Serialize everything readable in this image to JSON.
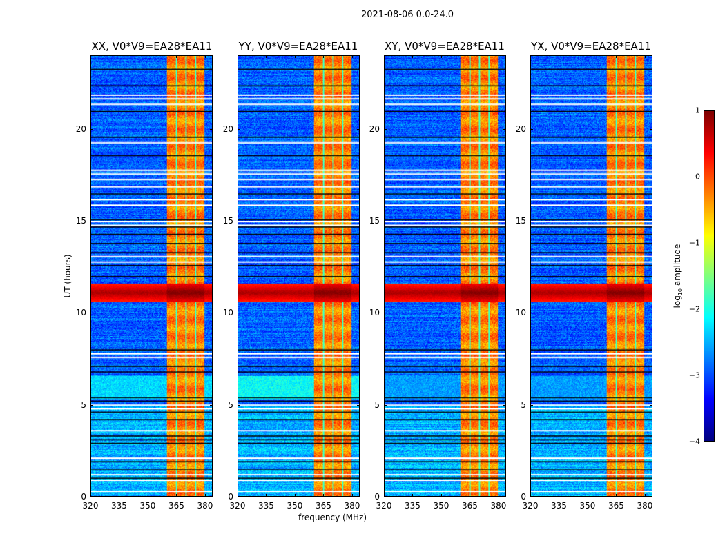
{
  "chart_data": {
    "type": "heatmap",
    "title": "2021-08-06 0.0-24.0",
    "xlabel": "frequency (MHz)",
    "ylabel": "UT (hours)",
    "xlim": [
      320,
      384
    ],
    "ylim": [
      0,
      24
    ],
    "xticks": [
      "320",
      "335",
      "350",
      "365",
      "380"
    ],
    "yticks": [
      "0",
      "5",
      "10",
      "15",
      "20"
    ],
    "panels": [
      {
        "title": "XX, V0*V9=EA28*EA11",
        "low_band_level": -2.3
      },
      {
        "title": "YY, V0*V9=EA28*EA11",
        "low_band_level": -2.1
      },
      {
        "title": "XY, V0*V9=EA28*EA11",
        "low_band_level": -2.6
      },
      {
        "title": "YX, V0*V9=EA28*EA11",
        "low_band_level": -2.6
      }
    ],
    "background_level": -2.9,
    "rfi_band_mhz": [
      360,
      380
    ],
    "rfi_band_level": -0.4,
    "rfi_gaps_mhz": [
      365,
      370,
      375
    ],
    "saturated_hours": [
      10.6,
      11.6
    ],
    "saturated_level": 0.8,
    "flagged_hours_white": [
      0.3,
      0.9,
      1.2,
      2.1,
      3.6,
      4.8,
      5.0,
      7.6,
      7.8,
      12.8,
      13.1,
      14.8,
      15.0,
      15.9,
      16.2,
      16.9,
      17.3,
      17.6,
      17.8,
      19.3,
      21.4,
      21.7,
      21.9
    ],
    "flagged_hours_black": [
      1.0,
      1.5,
      1.9,
      2.9,
      3.1,
      3.3,
      4.2,
      4.6,
      5.2,
      5.4,
      6.8,
      7.1,
      8.0,
      12.0,
      12.6,
      13.3,
      13.8,
      14.3,
      14.7,
      15.1,
      16.5,
      18.6,
      19.6,
      21.0,
      22.4,
      23.3
    ],
    "colorbar": {
      "label": "log10 amplitude",
      "range": [
        -4,
        1
      ],
      "ticks": [
        "1",
        "0",
        "−1",
        "−2",
        "−3",
        "−4"
      ],
      "colormap": "jet"
    }
  }
}
